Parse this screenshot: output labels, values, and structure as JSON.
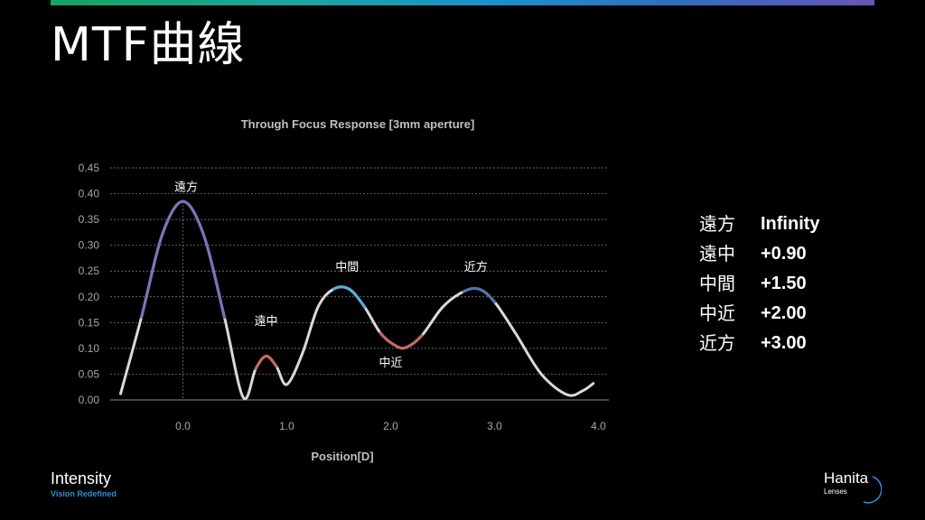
{
  "slide": {
    "title": "MTF曲線"
  },
  "colors": {
    "purple": "#7b62b4",
    "red": "#c4534a",
    "cyan": "#4aa8d8",
    "blue": "#3f67b0",
    "curve_base": "#d9d9d9"
  },
  "chart_data": {
    "type": "line",
    "title": "Through Focus Response [3mm aperture]",
    "xlabel": "Position[D]",
    "ylabel": "",
    "xlim": [
      -0.7,
      4.1
    ],
    "ylim": [
      0,
      0.45
    ],
    "x_ticks": [
      "0.0",
      "1.0",
      "2.0",
      "3.0",
      "4.0"
    ],
    "y_ticks": [
      "0.00",
      "0.05",
      "0.10",
      "0.15",
      "0.20",
      "0.25",
      "0.30",
      "0.35",
      "0.40",
      "0.45"
    ],
    "grid": true,
    "series": [
      {
        "x": [
          -0.6,
          -0.4,
          -0.2,
          0.0,
          0.2,
          0.4,
          0.58,
          0.7,
          0.8,
          0.9,
          1.0,
          1.15,
          1.3,
          1.45,
          1.6,
          1.75,
          1.9,
          2.05,
          2.15,
          2.3,
          2.5,
          2.7,
          2.85,
          3.0,
          3.2,
          3.45,
          3.7,
          3.85,
          3.95
        ],
        "y": [
          0.012,
          0.16,
          0.32,
          0.385,
          0.32,
          0.16,
          0.005,
          0.06,
          0.085,
          0.065,
          0.03,
          0.09,
          0.18,
          0.215,
          0.215,
          0.18,
          0.13,
          0.105,
          0.102,
          0.125,
          0.18,
          0.21,
          0.215,
          0.19,
          0.13,
          0.05,
          0.01,
          0.018,
          0.032
        ]
      }
    ],
    "annotations": [
      {
        "text": "遠方",
        "x": 0.03,
        "y": 0.405
      },
      {
        "text": "遠中",
        "x": 0.8,
        "y": 0.145
      },
      {
        "text": "中間",
        "x": 1.58,
        "y": 0.25
      },
      {
        "text": "中近",
        "x": 2.0,
        "y": 0.065
      },
      {
        "text": "近方",
        "x": 2.82,
        "y": 0.25
      }
    ],
    "reference_line_x": 0.0
  },
  "legend_table": [
    {
      "key": "遠方",
      "value": "Infinity"
    },
    {
      "key": "遠中",
      "value": "+0.90"
    },
    {
      "key": "中間",
      "value": "+1.50"
    },
    {
      "key": "中近",
      "value": "+2.00"
    },
    {
      "key": "近方",
      "value": "+3.00"
    }
  ],
  "branding": {
    "left_name": "Intensity",
    "left_tagline": "Vision Redefined",
    "right_name": "Hanita",
    "right_sub": "Lenses"
  }
}
